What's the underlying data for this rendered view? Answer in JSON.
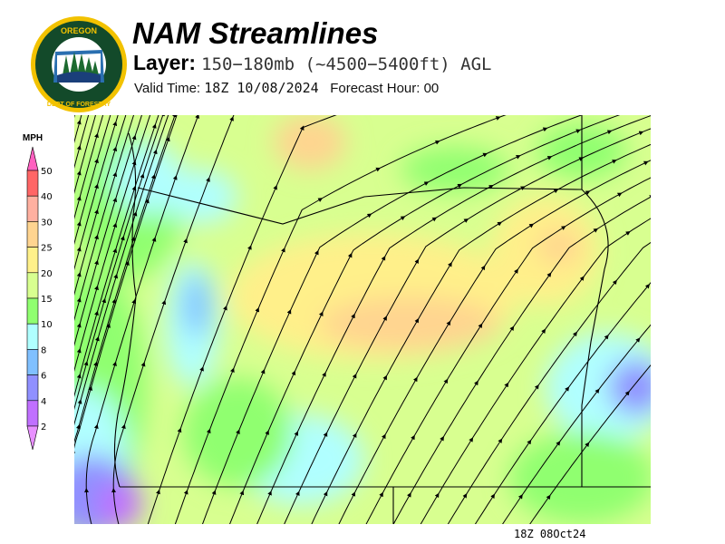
{
  "header": {
    "title": "NAM Streamlines",
    "layer_label": "Layer:",
    "layer_value": "150−180mb (~4500−5400ft) AGL",
    "valid_label": "Valid Time:",
    "valid_value": "18Z 10/08/2024",
    "forecast_label": "Forecast Hour:",
    "forecast_value": "00"
  },
  "logo": {
    "text_top": "OREGON",
    "text_bottom": "DEPARTMENT OF FORESTRY"
  },
  "legend": {
    "unit": "MPH",
    "bands": [
      {
        "label": "50",
        "color": "#ff6666"
      },
      {
        "label": "40",
        "color": "#ffb0a0"
      },
      {
        "label": "30",
        "color": "#ffd490"
      },
      {
        "label": "25",
        "color": "#fff08a"
      },
      {
        "label": "20",
        "color": "#d8ff90"
      },
      {
        "label": "15",
        "color": "#90ff70"
      },
      {
        "label": "10",
        "color": "#b0ffff"
      },
      {
        "label": "8",
        "color": "#80c0ff"
      },
      {
        "label": "6",
        "color": "#9090ff"
      },
      {
        "label": "4",
        "color": "#c070ff"
      }
    ],
    "bottom_label": "2",
    "top_arrow_color": "#ff60c0",
    "bottom_arrow_color": "#e890ff"
  },
  "map": {
    "stamp": "18Z 08Oct24",
    "wind_direction": "southwest to northeast"
  }
}
